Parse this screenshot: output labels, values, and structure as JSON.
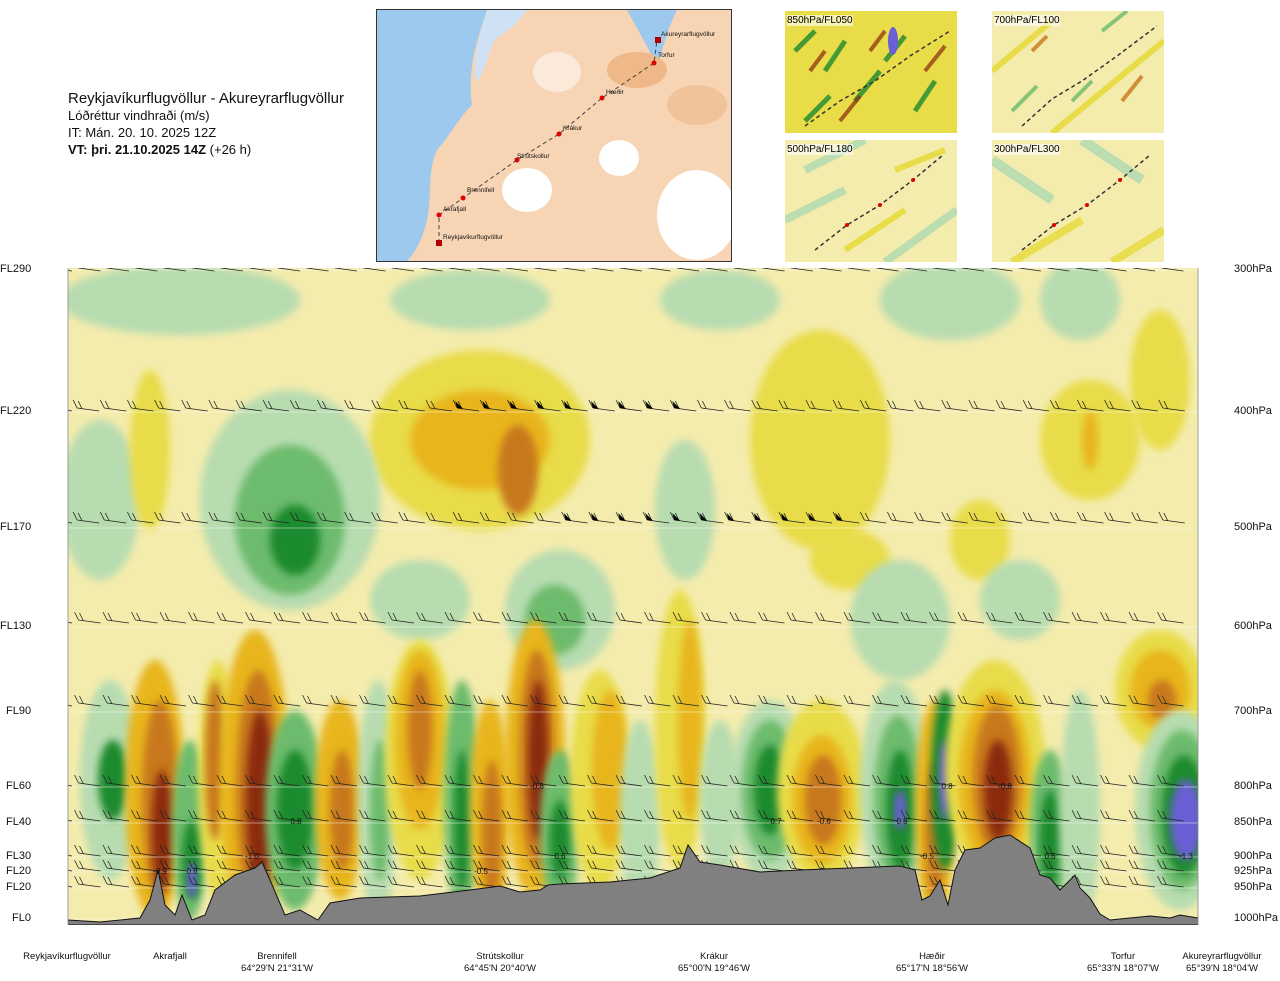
{
  "header": {
    "title": "Reykjavíkurflugvöllur - Akureyrarflugvöllur",
    "subtitle": "Lóðréttur vindhraði (m/s)",
    "it": "IT: Mán. 20. 10. 2025 12Z",
    "vt_bold": "VT: þri. 21.10.2025 14Z",
    "vt_rest": " (+26 h)"
  },
  "route_map": {
    "points": [
      "Reykjavíkurflugvöllur",
      "Akrafjall",
      "Brennifell",
      "Strútskollur",
      "Krákur",
      "Hæðir",
      "Torfur",
      "Akureyrarflugvöllur"
    ]
  },
  "mini_maps": [
    {
      "label": "850hPa/FL050"
    },
    {
      "label": "700hPa/FL100"
    },
    {
      "label": "500hPa/FL180"
    },
    {
      "label": "300hPa/FL300"
    }
  ],
  "chart_data": {
    "type": "heatmap",
    "title": "Lóðréttur vindhraði (m/s)",
    "flight_levels": [
      "FL290",
      "FL220",
      "FL170",
      "FL130",
      "FL90",
      "FL60",
      "FL40",
      "FL30",
      "FL20",
      "FL20",
      "FL0"
    ],
    "pressure_levels": [
      "300hPa",
      "400hPa",
      "500hPa",
      "600hPa",
      "700hPa",
      "800hPa",
      "850hPa",
      "900hPa",
      "925hPa",
      "950hPa",
      "1000hPa"
    ],
    "value_labels": [
      "-0.9",
      "0.8",
      "-1.0",
      "0.8",
      "-0.5",
      "-0.8",
      "0.6",
      "0.7",
      "-0.6",
      "0.8",
      "-0.5",
      "0.8",
      "-0.8",
      "0.6",
      "-1.3"
    ],
    "colors": {
      "strong_up": "#6b5fd6",
      "up_3": "#1f8a2e",
      "up_2": "#6dbb6d",
      "up_1": "#b7dcb0",
      "neutral": "#f4ecad",
      "down_1": "#e8dc48",
      "down_2": "#e8b51e",
      "down_3": "#c8781a",
      "strong_down": "#8a2a0c",
      "terrain": "#808080"
    }
  },
  "locations": [
    {
      "name": "Reykjavíkurflugvöllur",
      "coord": ""
    },
    {
      "name": "Akrafjall",
      "coord": ""
    },
    {
      "name": "Brennifell",
      "coord": "64°29'N 21°31'W"
    },
    {
      "name": "Strútskollur",
      "coord": "64°45'N 20°40'W"
    },
    {
      "name": "Krákur",
      "coord": "65°00'N 19°46'W"
    },
    {
      "name": "Hæðir",
      "coord": "65°17'N 18°56'W"
    },
    {
      "name": "Torfur",
      "coord": "65°33'N 18°07'W"
    },
    {
      "name": "Akureyrarflugvöllur",
      "coord": "65°39'N 18°04'W"
    }
  ]
}
